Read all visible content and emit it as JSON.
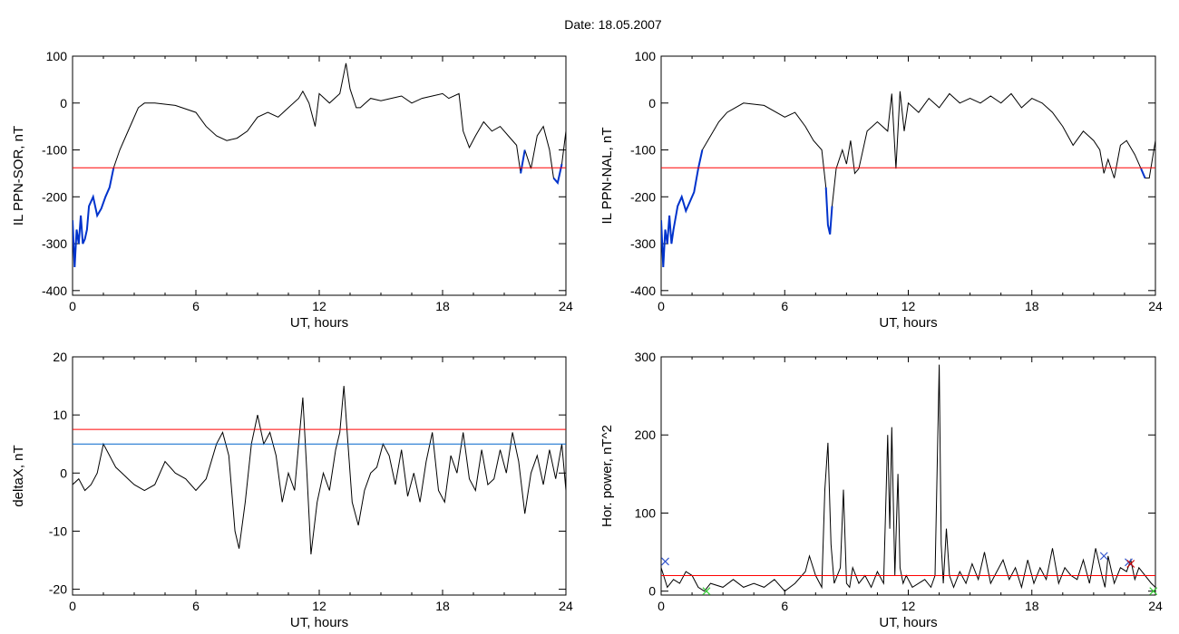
{
  "figure": {
    "title": "Date:  18.05.2007"
  },
  "colors": {
    "series": "#000000",
    "threshold_red": "#ff0000",
    "threshold_blue": "#0066cc",
    "segment_blue": "#0033cc",
    "marker_red": "#cc0000",
    "marker_green": "#33cc33",
    "marker_blue": "#3355cc"
  },
  "chart_data": [
    {
      "id": "sor",
      "type": "line",
      "ylabel": "IL PPN-SOR, nT",
      "xlabel": "UT, hours",
      "xlim": [
        0,
        24
      ],
      "ylim": [
        -410,
        100
      ],
      "xticks": [
        "0",
        "6",
        "12",
        "18",
        "24"
      ],
      "yticks": [
        "100",
        "0",
        "-100",
        "-200",
        "-300",
        "-400"
      ],
      "yticks_values": [
        100,
        0,
        -100,
        -200,
        -300,
        -400
      ],
      "thresholds": [
        {
          "value": -138,
          "color": "#ff0000"
        }
      ],
      "highlight": {
        "color": "#0033cc",
        "ranges": [
          [
            0,
            2
          ],
          [
            21.8,
            22
          ],
          [
            23.3,
            23.8
          ]
        ]
      },
      "series": [
        {
          "x": [
            0,
            0.1,
            0.2,
            0.3,
            0.4,
            0.5,
            0.6,
            0.7,
            0.8,
            1.0,
            1.2,
            1.4,
            1.6,
            1.8,
            2.0,
            2.3,
            2.6,
            2.9,
            3.2,
            3.5,
            4.0,
            5.0,
            6.0,
            6.5,
            7.0,
            7.5,
            8.0,
            8.5,
            9.0,
            9.5,
            10.0,
            10.5,
            11.0,
            11.2,
            11.5,
            11.8,
            12.0,
            12.5,
            13.0,
            13.3,
            13.5,
            13.8,
            14.0,
            14.5,
            15.0,
            15.5,
            16.0,
            16.5,
            17.0,
            17.5,
            18.0,
            18.3,
            18.8,
            19.0,
            19.3,
            19.6,
            20.0,
            20.4,
            20.8,
            21.2,
            21.6,
            21.8,
            22.0,
            22.3,
            22.6,
            22.9,
            23.2,
            23.4,
            23.6,
            23.8,
            24.0
          ],
          "values": [
            -250,
            -350,
            -270,
            -300,
            -240,
            -300,
            -290,
            -270,
            -220,
            -200,
            -240,
            -225,
            -200,
            -180,
            -138,
            -100,
            -70,
            -40,
            -10,
            0,
            0,
            -5,
            -20,
            -50,
            -70,
            -80,
            -75,
            -60,
            -30,
            -20,
            -30,
            -10,
            10,
            25,
            0,
            -50,
            20,
            0,
            20,
            85,
            30,
            -10,
            -10,
            10,
            5,
            10,
            15,
            0,
            10,
            15,
            20,
            10,
            20,
            -60,
            -95,
            -70,
            -40,
            -60,
            -50,
            -70,
            -90,
            -150,
            -100,
            -140,
            -70,
            -50,
            -100,
            -160,
            -170,
            -130,
            -60
          ]
        }
      ]
    },
    {
      "id": "nal",
      "type": "line",
      "ylabel": "IL PPN-NAL, nT",
      "xlabel": "UT, hours",
      "xlim": [
        0,
        24
      ],
      "ylim": [
        -410,
        100
      ],
      "xticks": [
        "0",
        "6",
        "12",
        "18",
        "24"
      ],
      "yticks": [
        "100",
        "0",
        "-100",
        "-200",
        "-300",
        "-400"
      ],
      "yticks_values": [
        100,
        0,
        -100,
        -200,
        -300,
        -400
      ],
      "thresholds": [
        {
          "value": -138,
          "color": "#ff0000"
        }
      ],
      "highlight": {
        "color": "#0033cc",
        "ranges": [
          [
            0,
            2
          ],
          [
            8.0,
            8.4
          ],
          [
            21.4,
            21.6
          ],
          [
            23.1,
            23.5
          ]
        ]
      },
      "series": [
        {
          "x": [
            0,
            0.1,
            0.2,
            0.3,
            0.4,
            0.5,
            0.6,
            0.8,
            1.0,
            1.2,
            1.4,
            1.6,
            1.8,
            2.0,
            2.4,
            2.8,
            3.2,
            3.6,
            4.0,
            5.0,
            6.0,
            6.5,
            7.0,
            7.4,
            7.8,
            8.0,
            8.1,
            8.2,
            8.3,
            8.5,
            8.8,
            9.0,
            9.2,
            9.4,
            9.6,
            10.0,
            10.5,
            11.0,
            11.2,
            11.4,
            11.6,
            11.8,
            12.0,
            12.5,
            13.0,
            13.5,
            14.0,
            14.5,
            15.0,
            15.5,
            16.0,
            16.5,
            17.0,
            17.5,
            18.0,
            18.5,
            19.0,
            19.5,
            20.0,
            20.5,
            21.0,
            21.3,
            21.5,
            21.7,
            22.0,
            22.3,
            22.6,
            23.0,
            23.3,
            23.5,
            23.7,
            24.0
          ],
          "values": [
            -250,
            -350,
            -270,
            -300,
            -240,
            -300,
            -270,
            -220,
            -200,
            -230,
            -210,
            -190,
            -140,
            -100,
            -70,
            -40,
            -20,
            -10,
            0,
            -5,
            -30,
            -20,
            -50,
            -80,
            -100,
            -180,
            -260,
            -280,
            -220,
            -140,
            -100,
            -130,
            -80,
            -150,
            -140,
            -60,
            -40,
            -60,
            20,
            -140,
            25,
            -60,
            0,
            -20,
            10,
            -10,
            20,
            0,
            10,
            0,
            15,
            0,
            20,
            -10,
            10,
            0,
            -20,
            -50,
            -90,
            -60,
            -80,
            -100,
            -150,
            -120,
            -160,
            -90,
            -80,
            -110,
            -140,
            -160,
            -160,
            -80
          ]
        }
      ]
    },
    {
      "id": "deltax",
      "type": "line",
      "ylabel": "deltaX, nT",
      "xlabel": "UT, hours",
      "xlim": [
        0,
        24
      ],
      "ylim": [
        -21,
        20
      ],
      "xticks": [
        "0",
        "6",
        "12",
        "18",
        "24"
      ],
      "yticks": [
        "20",
        "10",
        "0",
        "-10",
        "-20"
      ],
      "yticks_values": [
        20,
        10,
        0,
        -10,
        -20
      ],
      "thresholds": [
        {
          "value": 7.5,
          "color": "#ff0000"
        },
        {
          "value": 5,
          "color": "#0066cc"
        }
      ],
      "series": [
        {
          "x": [
            0,
            0.3,
            0.6,
            0.9,
            1.2,
            1.5,
            1.8,
            2.1,
            2.4,
            2.7,
            3.0,
            3.5,
            4.0,
            4.5,
            5.0,
            5.5,
            6.0,
            6.5,
            7.0,
            7.3,
            7.6,
            7.9,
            8.1,
            8.4,
            8.7,
            9.0,
            9.3,
            9.6,
            9.9,
            10.2,
            10.5,
            10.8,
            11.0,
            11.2,
            11.4,
            11.6,
            11.9,
            12.2,
            12.5,
            12.8,
            13.0,
            13.2,
            13.4,
            13.6,
            13.9,
            14.2,
            14.5,
            14.8,
            15.1,
            15.4,
            15.7,
            16.0,
            16.3,
            16.6,
            16.9,
            17.2,
            17.5,
            17.8,
            18.1,
            18.4,
            18.7,
            19.0,
            19.3,
            19.6,
            19.9,
            20.2,
            20.5,
            20.8,
            21.1,
            21.4,
            21.7,
            22.0,
            22.3,
            22.6,
            22.9,
            23.2,
            23.5,
            23.8,
            24.0
          ],
          "values": [
            -2,
            -1,
            -3,
            -2,
            0,
            5,
            3,
            1,
            0,
            -1,
            -2,
            -3,
            -2,
            2,
            0,
            -1,
            -3,
            -1,
            5,
            7,
            3,
            -10,
            -13,
            -5,
            5,
            10,
            5,
            7,
            3,
            -5,
            0,
            -3,
            5,
            13,
            0,
            -14,
            -5,
            0,
            -3,
            4,
            7,
            15,
            5,
            -5,
            -9,
            -3,
            0,
            1,
            5,
            3,
            -2,
            4,
            -4,
            0,
            -5,
            2,
            7,
            -3,
            -5,
            3,
            0,
            7,
            -1,
            -3,
            4,
            -2,
            -1,
            4,
            0,
            7,
            2,
            -7,
            0,
            3,
            -2,
            4,
            -1,
            5,
            -3
          ]
        }
      ]
    },
    {
      "id": "power",
      "type": "line",
      "ylabel": "Hor. power, nT^2",
      "xlabel": "UT, hours",
      "xlim": [
        0,
        24
      ],
      "ylim": [
        -5,
        300
      ],
      "xticks": [
        "0",
        "6",
        "12",
        "18",
        "24"
      ],
      "yticks": [
        "300",
        "200",
        "100",
        "0"
      ],
      "yticks_values": [
        300,
        200,
        100,
        0
      ],
      "thresholds": [
        {
          "value": 20,
          "color": "#ff0000"
        }
      ],
      "markers": [
        {
          "x": 0.2,
          "y": 38,
          "color": "#3355cc"
        },
        {
          "x": 21.5,
          "y": 45,
          "color": "#3355cc"
        },
        {
          "x": 22.7,
          "y": 37,
          "color": "#3355cc"
        },
        {
          "x": 22.8,
          "y": 35,
          "color": "#cc0000"
        },
        {
          "x": 2.2,
          "y": 0,
          "color": "#33cc33"
        },
        {
          "x": 23.9,
          "y": 0,
          "color": "#33cc33"
        }
      ],
      "series": [
        {
          "x": [
            0,
            0.3,
            0.6,
            0.9,
            1.2,
            1.5,
            1.8,
            2.1,
            2.4,
            3.0,
            3.5,
            4.0,
            4.5,
            5.0,
            5.5,
            6.0,
            6.5,
            7.0,
            7.2,
            7.5,
            7.8,
            7.95,
            8.1,
            8.25,
            8.4,
            8.7,
            8.85,
            9.0,
            9.15,
            9.3,
            9.6,
            9.9,
            10.2,
            10.5,
            10.8,
            11.0,
            11.1,
            11.2,
            11.35,
            11.5,
            11.6,
            11.75,
            11.9,
            12.2,
            12.5,
            12.8,
            13.1,
            13.3,
            13.5,
            13.6,
            13.7,
            13.85,
            14.0,
            14.2,
            14.5,
            14.8,
            15.1,
            15.4,
            15.7,
            16.0,
            16.3,
            16.6,
            16.9,
            17.2,
            17.5,
            17.8,
            18.1,
            18.4,
            18.7,
            19.0,
            19.3,
            19.6,
            19.9,
            20.2,
            20.5,
            20.8,
            21.1,
            21.4,
            21.55,
            21.7,
            22.0,
            22.3,
            22.6,
            22.8,
            23.0,
            23.2,
            23.5,
            23.8,
            24.0
          ],
          "values": [
            30,
            5,
            15,
            10,
            25,
            20,
            5,
            0,
            10,
            5,
            15,
            5,
            10,
            5,
            15,
            0,
            10,
            25,
            45,
            20,
            5,
            130,
            190,
            60,
            10,
            30,
            130,
            10,
            5,
            30,
            10,
            20,
            5,
            25,
            10,
            200,
            80,
            210,
            20,
            150,
            30,
            10,
            20,
            5,
            10,
            15,
            5,
            20,
            290,
            60,
            10,
            80,
            20,
            5,
            25,
            10,
            35,
            15,
            50,
            10,
            25,
            40,
            15,
            30,
            5,
            40,
            10,
            30,
            15,
            55,
            10,
            30,
            20,
            15,
            40,
            10,
            55,
            20,
            5,
            45,
            10,
            30,
            25,
            40,
            15,
            30,
            20,
            10,
            5
          ]
        }
      ]
    }
  ]
}
